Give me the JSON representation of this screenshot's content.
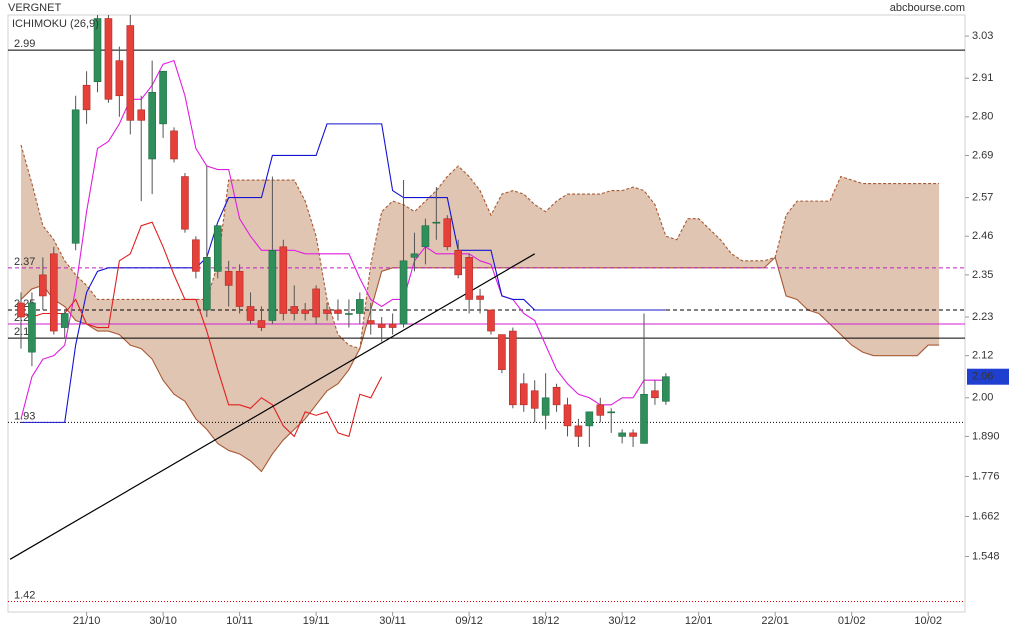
{
  "chart_data": {
    "type": "candlestick",
    "title": "VERGNET",
    "source": "abcbourse.com",
    "indicator": "ICHIMOKU (26,9)",
    "categories": [
      null,
      null,
      null,
      null,
      null,
      null,
      "21/10",
      null,
      null,
      null,
      null,
      null,
      null,
      "30/10",
      null,
      null,
      null,
      null,
      null,
      null,
      "10/11",
      null,
      null,
      null,
      null,
      null,
      null,
      "19/11",
      null,
      null,
      null,
      null,
      null,
      null,
      "30/11",
      null,
      null,
      null,
      null,
      null,
      null,
      "09/12",
      null,
      null,
      null,
      null,
      null,
      null,
      "18/12",
      null,
      null,
      null,
      null,
      null,
      null,
      "30/12",
      null,
      null,
      null,
      null,
      null,
      null,
      "12/01",
      null,
      null,
      null,
      null,
      null,
      null,
      "22/01",
      null,
      null,
      null,
      null,
      null,
      null,
      "01/02",
      null,
      null,
      null,
      null,
      null,
      null,
      "10/02",
      null
    ],
    "open": [
      2.27,
      2.13,
      2.35,
      2.41,
      2.2,
      2.44,
      2.89,
      2.9,
      3.08,
      2.96,
      3.06,
      2.82,
      2.68,
      2.78,
      2.76,
      2.63,
      2.45,
      2.25,
      2.36,
      2.36,
      2.36,
      2.26,
      2.22,
      2.22,
      2.43,
      2.26,
      2.25,
      2.31,
      2.25,
      2.25,
      2.24,
      2.24,
      2.22,
      2.21,
      2.21,
      2.21,
      2.4,
      2.43,
      2.5,
      2.51,
      2.42,
      2.4,
      2.29,
      2.25,
      2.18,
      2.19,
      2.04,
      2.02,
      1.95,
      2.03,
      1.98,
      1.92,
      1.92,
      1.98,
      1.96,
      1.89,
      1.9,
      1.87,
      2.02,
      1.99,
      null,
      null,
      null,
      null,
      null,
      null,
      null,
      null,
      null,
      null,
      null,
      null,
      null,
      null,
      null,
      null,
      null,
      null,
      null,
      null,
      null,
      null,
      null,
      null,
      null
    ],
    "high": [
      2.3,
      2.3,
      2.4,
      2.43,
      2.25,
      2.86,
      2.93,
      3.09,
      3.09,
      3.0,
      3.09,
      2.86,
      2.96,
      2.93,
      2.77,
      2.64,
      2.46,
      2.66,
      2.49,
      2.39,
      2.38,
      2.3,
      2.26,
      2.63,
      2.45,
      2.32,
      2.27,
      2.32,
      2.27,
      2.28,
      2.28,
      2.3,
      2.27,
      2.23,
      2.24,
      2.62,
      2.47,
      2.51,
      2.6,
      2.52,
      2.45,
      2.41,
      2.31,
      2.25,
      2.18,
      2.2,
      2.07,
      2.05,
      2.07,
      2.04,
      2.0,
      1.94,
      1.95,
      2.0,
      1.97,
      1.91,
      1.91,
      2.24,
      2.05,
      2.07,
      null,
      null,
      null,
      null,
      null,
      null,
      null,
      null,
      null,
      null,
      null,
      null,
      null,
      null,
      null,
      null,
      null,
      null,
      null,
      null,
      null,
      null,
      null,
      null,
      null
    ],
    "low": [
      2.14,
      2.09,
      2.25,
      2.18,
      2.17,
      2.42,
      2.78,
      2.87,
      2.84,
      2.8,
      2.75,
      2.56,
      2.58,
      2.74,
      2.67,
      2.47,
      2.34,
      2.23,
      2.34,
      2.26,
      2.24,
      2.21,
      2.19,
      2.21,
      2.22,
      2.22,
      2.22,
      2.21,
      2.22,
      2.22,
      2.2,
      2.21,
      2.18,
      2.16,
      2.18,
      2.2,
      2.36,
      2.38,
      2.45,
      2.42,
      2.34,
      2.24,
      2.24,
      2.18,
      2.07,
      1.97,
      1.96,
      1.93,
      1.91,
      1.96,
      1.89,
      1.86,
      1.86,
      1.93,
      1.9,
      1.87,
      1.86,
      1.87,
      1.98,
      1.98,
      null,
      null,
      null,
      null,
      null,
      null,
      null,
      null,
      null,
      null,
      null,
      null,
      null,
      null,
      null,
      null,
      null,
      null,
      null,
      null,
      null,
      null,
      null,
      null,
      null
    ],
    "close": [
      2.23,
      2.27,
      2.29,
      2.19,
      2.24,
      2.82,
      2.82,
      3.08,
      2.85,
      2.86,
      2.79,
      2.79,
      2.87,
      2.93,
      2.68,
      2.48,
      2.36,
      2.4,
      2.49,
      2.32,
      2.26,
      2.22,
      2.2,
      2.42,
      2.24,
      2.24,
      2.24,
      2.23,
      2.24,
      2.24,
      2.24,
      2.28,
      2.21,
      2.2,
      2.2,
      2.39,
      2.41,
      2.49,
      2.5,
      2.43,
      2.35,
      2.28,
      2.28,
      2.19,
      2.08,
      1.98,
      1.98,
      1.97,
      2.0,
      1.98,
      1.92,
      1.89,
      1.96,
      1.95,
      1.96,
      1.9,
      1.89,
      2.01,
      2.0,
      2.06,
      null,
      null,
      null,
      null,
      null,
      null,
      null,
      null,
      null,
      null,
      null,
      null,
      null,
      null,
      null,
      null,
      null,
      null,
      null,
      null,
      null,
      null,
      null,
      null,
      null
    ],
    "up_color": "#2f8f5b",
    "down_color": "#e5403a",
    "lines": [
      {
        "color": "#e01ee0",
        "values": [
          1.94,
          2.06,
          2.11,
          2.12,
          2.15,
          2.31,
          2.53,
          2.71,
          2.73,
          2.78,
          2.85,
          2.85,
          2.89,
          2.95,
          2.96,
          2.86,
          2.71,
          2.66,
          2.65,
          2.65,
          2.51,
          2.46,
          2.42,
          2.42,
          2.42,
          2.42,
          2.41,
          2.41,
          2.41,
          2.41,
          2.41,
          2.34,
          2.28,
          2.26,
          2.28,
          2.28,
          2.39,
          2.43,
          2.41,
          2.41,
          2.41,
          2.41,
          2.39,
          2.38,
          2.29,
          2.28,
          2.24,
          2.22,
          2.15,
          2.08,
          2.04,
          2.01,
          2.0,
          1.98,
          1.98,
          2.0,
          2.0,
          2.05,
          2.05,
          2.05,
          null,
          null,
          null,
          null,
          null,
          null,
          null,
          null,
          null,
          null,
          null,
          null,
          null,
          null,
          null,
          null,
          null,
          null,
          null,
          null,
          null,
          null,
          null,
          null,
          null
        ]
      },
      {
        "color": "#1414d2",
        "values": [
          1.93,
          1.93,
          1.93,
          1.93,
          1.93,
          2.15,
          2.3,
          2.36,
          2.37,
          2.37,
          2.37,
          2.37,
          2.37,
          2.37,
          2.37,
          2.37,
          2.37,
          2.4,
          2.5,
          2.57,
          2.57,
          2.57,
          2.57,
          2.69,
          2.69,
          2.69,
          2.69,
          2.69,
          2.78,
          2.78,
          2.78,
          2.78,
          2.78,
          2.78,
          2.59,
          2.57,
          2.57,
          2.57,
          2.57,
          2.57,
          2.42,
          2.42,
          2.42,
          2.42,
          2.29,
          2.28,
          2.28,
          2.25,
          2.25,
          2.25,
          2.25,
          2.25,
          2.25,
          2.25,
          2.25,
          2.25,
          2.25,
          2.25,
          2.25,
          2.25,
          null,
          null,
          null,
          null,
          null,
          null,
          null,
          null,
          null,
          null,
          null,
          null,
          null,
          null,
          null,
          null,
          null,
          null,
          null,
          null,
          null,
          null,
          null,
          null,
          null
        ]
      },
      {
        "color": "#e02020",
        "values": [
          2.24,
          2.23,
          2.24,
          2.24,
          2.24,
          2.28,
          2.21,
          2.2,
          2.2,
          2.39,
          2.41,
          2.49,
          2.5,
          2.43,
          2.35,
          2.28,
          2.28,
          2.19,
          2.08,
          1.98,
          1.98,
          1.97,
          2.0,
          1.98,
          1.92,
          1.89,
          1.96,
          1.95,
          1.96,
          1.9,
          1.89,
          2.01,
          2.0,
          2.06,
          null,
          null,
          null,
          null,
          null,
          null,
          null,
          null,
          null,
          null,
          null,
          null,
          null,
          null,
          null,
          null,
          null,
          null,
          null,
          null,
          null,
          null,
          null,
          null,
          null,
          null,
          null,
          null,
          null,
          null,
          null,
          null,
          null,
          null,
          null,
          null,
          null,
          null,
          null,
          null,
          null,
          null,
          null,
          null,
          null,
          null,
          null,
          null,
          null,
          null,
          null
        ]
      }
    ],
    "cloud": {
      "color": "#dcbba6",
      "edge_color": "#a85a34",
      "span_a": [
        2.72,
        2.61,
        2.49,
        2.45,
        2.39,
        2.35,
        2.32,
        2.28,
        2.28,
        2.28,
        2.28,
        2.28,
        2.28,
        2.28,
        2.28,
        2.28,
        2.28,
        2.28,
        2.38,
        2.62,
        2.62,
        2.62,
        2.62,
        2.62,
        2.62,
        2.62,
        2.56,
        2.46,
        2.28,
        2.18,
        2.15,
        2.14,
        2.38,
        2.53,
        2.56,
        2.55,
        2.53,
        2.56,
        2.59,
        2.63,
        2.66,
        2.63,
        2.59,
        2.52,
        2.58,
        2.59,
        2.58,
        2.55,
        2.53,
        2.56,
        2.58,
        2.58,
        2.58,
        2.58,
        2.59,
        2.59,
        2.6,
        2.59,
        2.55,
        2.46,
        2.45,
        2.51,
        2.51,
        2.48,
        2.45,
        2.41,
        2.39,
        2.39,
        2.39,
        2.4,
        2.52,
        2.56,
        2.56,
        2.56,
        2.56,
        2.63,
        2.62,
        2.61,
        2.61,
        2.61,
        2.61,
        2.61,
        2.61,
        2.61,
        2.61
      ],
      "span_b": [
        2.28,
        2.31,
        2.32,
        2.28,
        2.26,
        2.22,
        2.21,
        2.19,
        2.19,
        2.18,
        2.15,
        2.14,
        2.11,
        2.05,
        2.01,
        1.99,
        1.94,
        1.91,
        1.87,
        1.85,
        1.84,
        1.82,
        1.79,
        1.84,
        1.88,
        1.91,
        1.94,
        1.98,
        2.02,
        2.04,
        2.08,
        2.14,
        2.25,
        2.36,
        2.37,
        2.37,
        2.37,
        2.37,
        2.37,
        2.37,
        2.37,
        2.37,
        2.37,
        2.37,
        2.37,
        2.37,
        2.37,
        2.37,
        2.37,
        2.37,
        2.37,
        2.37,
        2.37,
        2.37,
        2.37,
        2.37,
        2.37,
        2.37,
        2.37,
        2.37,
        2.37,
        2.37,
        2.37,
        2.37,
        2.37,
        2.37,
        2.37,
        2.37,
        2.37,
        2.4,
        2.29,
        2.28,
        2.25,
        2.24,
        2.21,
        2.18,
        2.15,
        2.13,
        2.12,
        2.12,
        2.12,
        2.12,
        2.12,
        2.15,
        2.15
      ]
    },
    "level_label_color": "#e00000",
    "levels": [
      {
        "value": 2.99,
        "color": "#000000",
        "style": "solid"
      },
      {
        "value": 2.37,
        "color": "#c020c0",
        "style": "dashed"
      },
      {
        "value": 2.25,
        "color": "#000000",
        "style": "dashed"
      },
      {
        "value": 2.21,
        "color": "#d020d0",
        "style": "solid"
      },
      {
        "value": 2.17,
        "color": "#000000",
        "style": "solid"
      },
      {
        "value": 1.93,
        "color": "#000000",
        "style": "dotted"
      },
      {
        "value": 1.42,
        "color": "#e00000",
        "style": "dotted"
      }
    ],
    "trendline": {
      "x": [
        -1,
        47
      ],
      "values": [
        1.54,
        2.41
      ],
      "color": "#000000"
    },
    "last_price": {
      "value": 2.06,
      "color": "#1f3fd0"
    },
    "ylim": [
      1.39,
      3.09
    ],
    "yticks": [
      3.03,
      2.91,
      {
        "value": 2.8,
        "label": "2.80"
      },
      2.69,
      2.57,
      2.46,
      2.35,
      2.23,
      2.12,
      {
        "value": 2,
        "label": "2.00"
      },
      {
        "value": 1.89,
        "label": "1.890"
      },
      1.776,
      1.662,
      1.548
    ],
    "grid": false
  }
}
